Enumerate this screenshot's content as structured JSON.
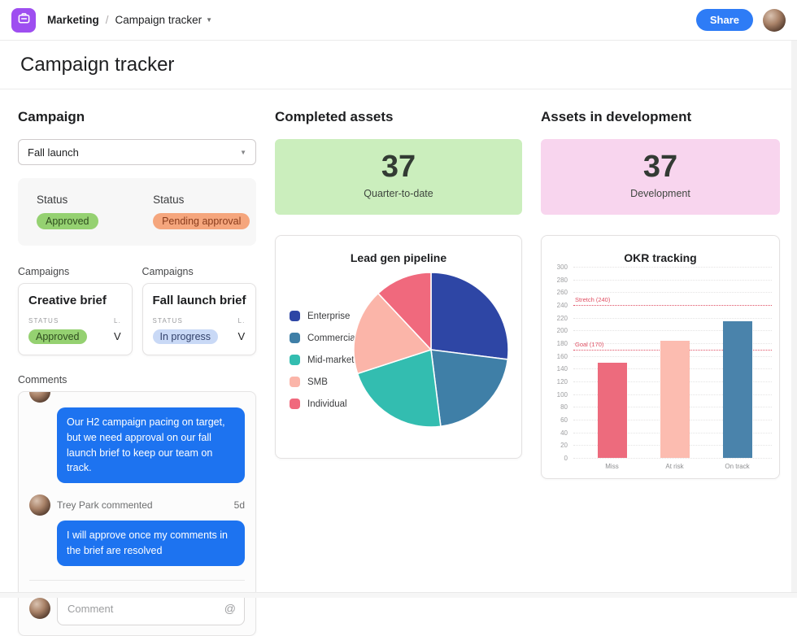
{
  "topbar": {
    "app_icon": "briefcase-icon",
    "brand_color": "#9e4ef0",
    "project": "Marketing",
    "separator": "/",
    "page": "Campaign tracker",
    "share_label": "Share",
    "accent_color": "#2e7cf6"
  },
  "page_title": "Campaign tracker",
  "campaign": {
    "heading": "Campaign",
    "selected_campaign": "Fall launch",
    "status_panel": [
      {
        "label": "Status",
        "value": "Approved",
        "bg": "#95d171",
        "fg": "#2f4d1f"
      },
      {
        "label": "Status",
        "value": "Pending approval",
        "bg": "#f5a67d",
        "fg": "#8a3c1c"
      }
    ],
    "card_groups": [
      {
        "group_label": "Campaigns",
        "title": "Creative brief",
        "field_label": "STATUS",
        "status": "Approved",
        "status_bg": "#95d171",
        "status_fg": "#2f4d1f",
        "side_label": "L.",
        "side_value": "V"
      },
      {
        "group_label": "Campaigns",
        "title": "Fall launch brief",
        "field_label": "STATUS",
        "status": "In progress",
        "status_bg": "#c9d9f6",
        "status_fg": "#33426b",
        "side_label": "L.",
        "side_value": "V"
      }
    ]
  },
  "comments": {
    "heading": "Comments",
    "items": [
      {
        "text": "Our H2 campaign pacing on target, but we need approval on our fall launch brief to keep our team on track."
      },
      {
        "author": "Trey Park commented",
        "time": "5d",
        "text": "I will approve once my comments in the brief are resolved"
      }
    ],
    "input_placeholder": "Comment",
    "mention_icon": "@"
  },
  "completed_assets": {
    "heading": "Completed assets",
    "value": "37",
    "label": "Quarter-to-date",
    "bg": "#cbeebd"
  },
  "assets_in_development": {
    "heading": "Assets in development",
    "value": "37",
    "label": "Development",
    "bg": "#f8d5ee"
  },
  "chart_data": [
    {
      "type": "pie",
      "title": "Lead gen pipeline",
      "legend_position": "left",
      "slices": [
        {
          "label": "Enterprise",
          "value": 27,
          "color": "#2e46a5"
        },
        {
          "label": "Commercial",
          "value": 21,
          "color": "#3f7fa7"
        },
        {
          "label": "Mid-market",
          "value": 22,
          "color": "#33bdb0"
        },
        {
          "label": "SMB",
          "value": 18,
          "color": "#fbb5a9"
        },
        {
          "label": "Individual",
          "value": 12,
          "color": "#f0697d"
        }
      ]
    },
    {
      "type": "bar",
      "title": "OKR tracking",
      "categories": [
        "Miss",
        "At risk",
        "On track"
      ],
      "values": [
        150,
        184,
        215
      ],
      "colors": [
        "#ed6b7d",
        "#fcbcb0",
        "#4a83ab"
      ],
      "ylim": [
        0,
        300
      ],
      "ytick_step": 20,
      "grid": true,
      "reference_lines": [
        {
          "label": "Stretch (240)",
          "value": 240,
          "color": "#e04f63"
        },
        {
          "label": "Goal (170)",
          "value": 170,
          "color": "#e04f63"
        }
      ]
    }
  ]
}
